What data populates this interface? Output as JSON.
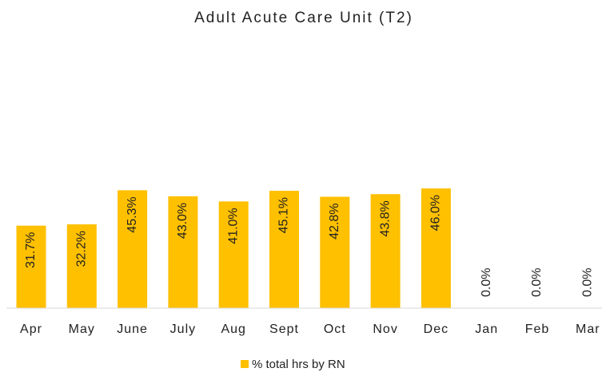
{
  "chart_data": {
    "type": "bar",
    "title": "Adult Acute Care Unit (T2)",
    "categories": [
      "Apr",
      "May",
      "June",
      "July",
      "Aug",
      "Sept",
      "Oct",
      "Nov",
      "Dec",
      "Jan",
      "Feb",
      "Mar"
    ],
    "series": [
      {
        "name": "% total hrs by RN",
        "color": "#ffc000",
        "values": [
          31.7,
          32.2,
          45.3,
          43.0,
          41.0,
          45.1,
          42.8,
          43.8,
          46.0,
          0.0,
          0.0,
          0.0
        ],
        "value_labels": [
          "31.7%",
          "32.2%",
          "45.3%",
          "43.0%",
          "41.0%",
          "45.1%",
          "42.8%",
          "43.8%",
          "46.0%",
          "0.0%",
          "0.0%",
          "0.0%"
        ]
      }
    ],
    "ylim": [
      0,
      100
    ],
    "legend": "bottom"
  }
}
